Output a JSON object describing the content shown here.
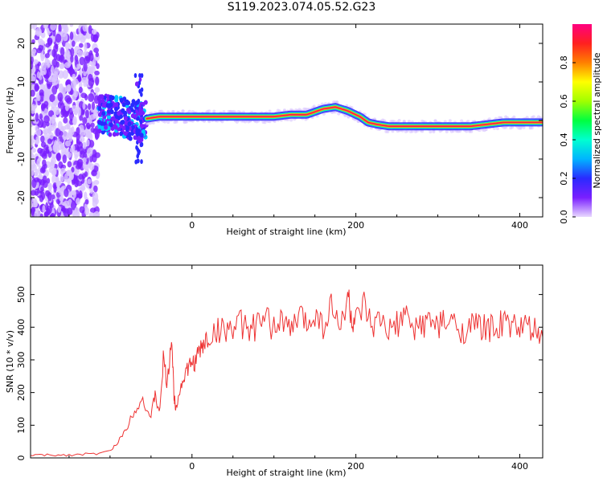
{
  "title": "S119.2023.074.05.52.G23",
  "chart_data": [
    {
      "type": "heatmap",
      "xlabel": "Height of straight line (km)",
      "ylabel": "Frequency (Hz)",
      "xlim": [
        -197,
        428
      ],
      "ylim": [
        -25,
        25
      ],
      "xticks": [
        0,
        200,
        400
      ],
      "yticks": [
        -20,
        -10,
        0,
        10,
        20
      ],
      "colorbar": {
        "label": "Normalized spectral amplitude",
        "range": [
          0,
          1
        ],
        "ticks": [
          "0.0",
          "0.2",
          "0.4",
          "0.6",
          "0.8"
        ],
        "colors": [
          "#e8d8ff",
          "#7a1fff",
          "#2a2aff",
          "#00b4ff",
          "#00ffd0",
          "#00ff40",
          "#a0ff00",
          "#ffff00",
          "#ff8000",
          "#ff2020",
          "#ff0080"
        ]
      },
      "ridge": {
        "x": [
          -110,
          -90,
          -70,
          -55,
          -40,
          -20,
          0,
          20,
          40,
          60,
          80,
          100,
          120,
          140,
          160,
          175,
          190,
          205,
          215,
          225,
          240,
          260,
          280,
          300,
          320,
          340,
          360,
          380,
          400,
          428
        ],
        "y": [
          1.5,
          1.0,
          0.0,
          0.5,
          1.0,
          1.0,
          1.0,
          1.0,
          1.0,
          1.0,
          1.0,
          1.0,
          1.5,
          1.5,
          3.0,
          3.5,
          2.5,
          1.0,
          -0.5,
          -1.0,
          -1.5,
          -1.5,
          -1.5,
          -1.5,
          -1.5,
          -1.5,
          -1.0,
          -0.5,
          -0.5,
          -0.5
        ]
      }
    },
    {
      "type": "line",
      "xlabel": "Height of straight line (km)",
      "ylabel": "SNR (10 * v/v)",
      "xlim": [
        -197,
        428
      ],
      "ylim": [
        0,
        590
      ],
      "xticks": [
        0,
        200,
        400
      ],
      "yticks": [
        0,
        100,
        200,
        300,
        400,
        500
      ],
      "line_color": "#ee3333",
      "series": [
        {
          "x": [
            -197,
            -180,
            -160,
            -140,
            -120,
            -100,
            -90,
            -80,
            -70,
            -60,
            -50,
            -45,
            -40,
            -35,
            -30,
            -25,
            -22,
            -20,
            -15,
            -10,
            -5,
            0,
            5,
            10,
            15,
            20,
            30,
            40,
            50,
            60,
            70,
            80,
            90,
            100,
            110,
            120,
            130,
            140,
            150,
            160,
            170,
            180,
            190,
            195,
            200,
            210,
            220,
            230,
            240,
            250,
            260,
            270,
            280,
            290,
            300,
            310,
            320,
            330,
            340,
            350,
            360,
            370,
            380,
            390,
            400,
            410,
            420,
            428
          ],
          "y": [
            10,
            8,
            9,
            10,
            12,
            20,
            50,
            90,
            150,
            180,
            120,
            200,
            130,
            300,
            220,
            380,
            190,
            160,
            200,
            250,
            270,
            290,
            300,
            330,
            350,
            370,
            385,
            400,
            395,
            410,
            390,
            405,
            420,
            400,
            430,
            380,
            440,
            410,
            450,
            400,
            470,
            390,
            500,
            420,
            410,
            460,
            390,
            420,
            380,
            410,
            430,
            395,
            410,
            420,
            400,
            415,
            410,
            390,
            400,
            405,
            395,
            400,
            410,
            405,
            400,
            395,
            385,
            370
          ]
        }
      ]
    }
  ]
}
